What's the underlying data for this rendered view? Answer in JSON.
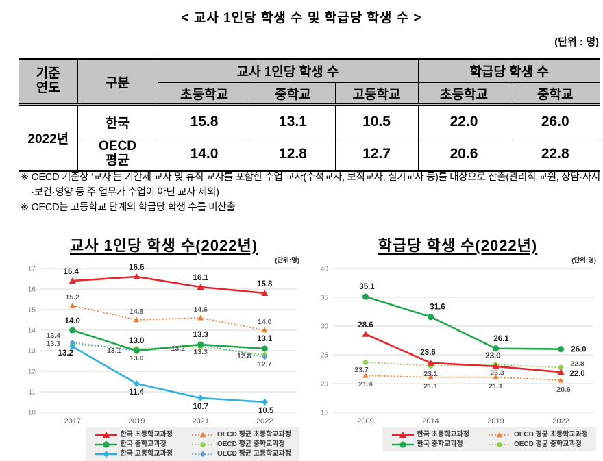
{
  "doc": {
    "title": "< 교사 1인당 학생 수 및 학급당 학생 수 >",
    "unit_note": "(단위 : 명)",
    "footnotes": [
      "※ OECD 기준상 ‘교사’는 기간제 교사 및 휴직 교사를 포함한 수업 교사(수석교사, 보직교사, 실기교사 등)를 대상으로 산출(관리직 교원, 상담·사서·보건·영양 등 주 업무가 수업이 아닌 교사 제외)",
      "※ OECD는 고등학교 단계의 학급당 학생 수를 미산출"
    ]
  },
  "table": {
    "header": {
      "base_year": "기준\n연도",
      "category": "구분",
      "group_teacher": "교사 1인당 학생 수",
      "group_class": "학급당 학생 수",
      "sub_teacher": [
        "초등학교",
        "중학교",
        "고등학교"
      ],
      "sub_class": [
        "초등학교",
        "중학교"
      ]
    },
    "year": "2022년",
    "rows": [
      {
        "label": "한국",
        "values": [
          "15.8",
          "13.1",
          "10.5",
          "22.0",
          "26.0"
        ]
      },
      {
        "label": "OECD\n평균",
        "values": [
          "14.0",
          "12.8",
          "12.7",
          "20.6",
          "22.8"
        ]
      }
    ]
  },
  "chart_data": [
    {
      "type": "line",
      "title": "교사 1인당 학생 수(2022년)",
      "unit_label": "(단위:명)",
      "categories": [
        "2017",
        "2019",
        "2021",
        "2022"
      ],
      "ylim": [
        10,
        17
      ],
      "ytick_step": 1,
      "grid": true,
      "legend_position": "bottom",
      "series": [
        {
          "name": "한국 초등학교과정",
          "values": [
            16.4,
            16.6,
            16.1,
            15.8
          ],
          "color": "#e8252a",
          "line": "solid",
          "marker": "triangle",
          "label_color": "#1a1a1a"
        },
        {
          "name": "한국 중학교과정",
          "values": [
            14.0,
            13.0,
            13.3,
            13.1
          ],
          "color": "#1fa750",
          "line": "solid",
          "marker": "circle",
          "label_color": "#1a1a1a"
        },
        {
          "name": "한국 고등학교과정",
          "values": [
            13.2,
            11.4,
            10.7,
            10.5
          ],
          "color": "#2eb0e6",
          "line": "solid",
          "marker": "diamond",
          "label_color": "#1a1a1a"
        },
        {
          "name": "OECD 평균 초등학교과정",
          "values": [
            15.2,
            14.5,
            14.6,
            14.0
          ],
          "color": "#ed7d31",
          "line": "dotted",
          "marker": "triangle",
          "label_color": "#595959"
        },
        {
          "name": "OECD 평균 중학교과정",
          "values": [
            13.3,
            13.1,
            13.2,
            12.8
          ],
          "color": "#92d050",
          "line": "dotted",
          "marker": "circle",
          "label_color": "#595959"
        },
        {
          "name": "OECD 평균 고등학교과정",
          "values": [
            13.4,
            13.0,
            13.3,
            12.7
          ],
          "color": "#5b9bd5",
          "line": "dotted",
          "marker": "diamond",
          "label_color": "#595959"
        }
      ]
    },
    {
      "type": "line",
      "title": "학급당 학생 수(2022년)",
      "unit_label": "(단위:명)",
      "categories": [
        "2009",
        "2014",
        "2019",
        "2022"
      ],
      "ylim": [
        15,
        40
      ],
      "ytick_step": 5,
      "grid": true,
      "legend_position": "bottom",
      "series": [
        {
          "name": "한국 초등학교과정",
          "values": [
            28.6,
            23.6,
            23.0,
            22.0
          ],
          "color": "#e8252a",
          "line": "solid",
          "marker": "triangle",
          "label_color": "#1a1a1a"
        },
        {
          "name": "한국 중학교과정",
          "values": [
            35.1,
            31.6,
            26.1,
            26.0
          ],
          "color": "#1fa750",
          "line": "solid",
          "marker": "circle",
          "label_color": "#1a1a1a"
        },
        {
          "name": "OECD 평균 초등학교과정",
          "values": [
            21.4,
            21.1,
            21.1,
            20.6
          ],
          "color": "#ed7d31",
          "line": "dotted",
          "marker": "triangle",
          "label_color": "#595959"
        },
        {
          "name": "OECD 평균 중학교과정",
          "values": [
            23.7,
            23.1,
            23.3,
            22.8
          ],
          "color": "#92d050",
          "line": "dotted",
          "marker": "circle",
          "label_color": "#595959"
        }
      ]
    }
  ]
}
